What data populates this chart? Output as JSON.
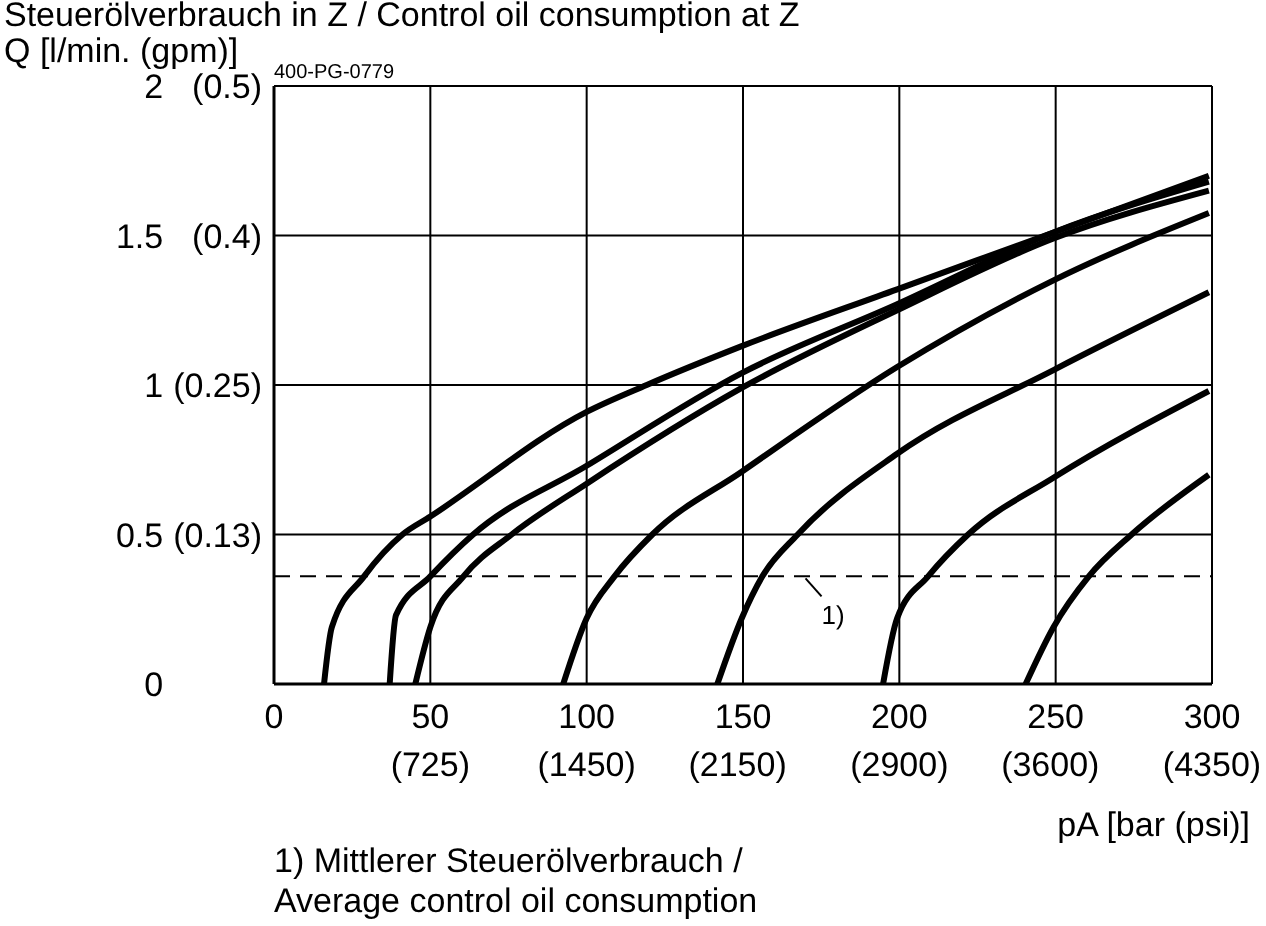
{
  "chart_data": {
    "type": "line",
    "title": "Steuerölverbrauch in Z / Control oil consumption at Z",
    "ylabel": "Q [l/min. (gpm)]",
    "xlabel": "pA [bar (psi)]",
    "annotations": [
      "400-PG-0779",
      "1) Mittlerer Steuerölverbrauch /\nAverage control oil consumption",
      {
        "text": "1)",
        "x": 170,
        "y": 0.36
      }
    ],
    "xlim": [
      0,
      300
    ],
    "xticks": [
      0,
      50,
      100,
      150,
      200,
      250,
      300
    ],
    "x2lim": [
      0,
      4350
    ],
    "x2ticks": [
      {
        "value": 725,
        "label": "(725)"
      },
      {
        "value": 1450,
        "label": "(1450)"
      },
      {
        "value": 2150,
        "label": "(2150)"
      },
      {
        "value": 2900,
        "label": "(2900)"
      },
      {
        "value": 3600,
        "label": "(3600)"
      },
      {
        "value": 4350,
        "label": "(4350)"
      }
    ],
    "ylim": [
      0,
      2
    ],
    "yticks": [
      0,
      0.5,
      1,
      1.5,
      2
    ],
    "y2lim": [
      0,
      0.5
    ],
    "y2ticks": [
      {
        "value": 0.125,
        "label": "(0.13)"
      },
      {
        "value": 0.25,
        "label": "(0.25)"
      },
      {
        "value": 0.375,
        "label": "(0.4)"
      },
      {
        "value": 0.5,
        "label": "(0.5)"
      }
    ],
    "grid": true,
    "marker": "none",
    "line_style": "solid",
    "ref_lines": [
      {
        "axis": "y",
        "value": 0.36,
        "color": "#000000",
        "line_style": "dashed"
      }
    ],
    "series": [
      {
        "color": "#000000",
        "x": [
          16,
          18.5,
          28.8,
          41.1,
          50,
          100,
          119.2,
          149.6,
          199.3,
          249.3,
          299
        ],
        "values": [
          0,
          0.19,
          0.36,
          0.5,
          0.56,
          0.91,
          1,
          1.13,
          1.32,
          1.51,
          1.7
        ]
      },
      {
        "color": "#000000",
        "x": [
          37,
          39,
          50,
          63.7,
          100,
          149.6,
          199.3,
          249.3,
          299
        ],
        "values": [
          0,
          0.23,
          0.36,
          0.5,
          0.73,
          1.04,
          1.27,
          1.51,
          1.68
        ]
      },
      {
        "color": "#000000",
        "x": [
          45.2,
          50,
          60.6,
          76,
          100,
          149.6,
          199.3,
          249.3,
          299
        ],
        "values": [
          0,
          0.19,
          0.36,
          0.5,
          0.67,
          0.99,
          1.25,
          1.49,
          1.65
        ]
      },
      {
        "color": "#000000",
        "x": [
          92.5,
          100,
          108.9,
          121,
          149.6,
          199.3,
          249.3,
          299
        ],
        "values": [
          0,
          0.22,
          0.36,
          0.5,
          0.71,
          1.06,
          1.35,
          1.575
        ]
      },
      {
        "color": "#000000",
        "x": [
          141.8,
          149.6,
          156.2,
          167.5,
          199.3,
          249.3,
          299
        ],
        "values": [
          0,
          0.22,
          0.36,
          0.5,
          0.77,
          1.05,
          1.31
        ]
      },
      {
        "color": "#000000",
        "x": [
          194.8,
          199.3,
          209.2,
          222,
          249.3,
          299
        ],
        "values": [
          0,
          0.22,
          0.36,
          0.5,
          0.69,
          0.98
        ]
      },
      {
        "color": "#000000",
        "x": [
          240.4,
          249.3,
          260.6,
          274.3,
          299
        ],
        "values": [
          0,
          0.19,
          0.36,
          0.5,
          0.7
        ]
      }
    ]
  }
}
